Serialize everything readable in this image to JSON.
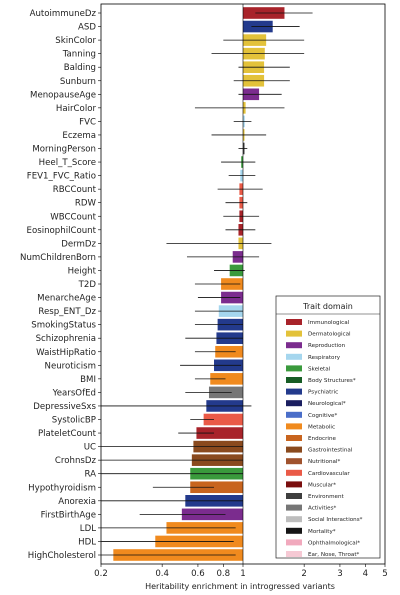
{
  "chart_data": {
    "type": "bar",
    "orientation": "horizontal",
    "xscale": "log",
    "xlim": [
      0.2,
      5
    ],
    "xticks": [
      0.2,
      0.4,
      0.6,
      0.8,
      1,
      2,
      3,
      4,
      5
    ],
    "xtick_labels": [
      "0.2",
      "0.4",
      "0.6",
      "0.8",
      "1",
      "2",
      "3",
      "4",
      "5"
    ],
    "xlabel": "Heritability enrichment in introgressed variants",
    "reference_line": 1,
    "categories": [
      "AutoimmuneDz",
      "ASD",
      "SkinColor",
      "Tanning",
      "Balding",
      "Sunburn",
      "MenopauseAge",
      "HairColor",
      "FVC",
      "Eczema",
      "MorningPerson",
      "Heel_T_Score",
      "FEV1_FVC_Ratio",
      "RBCCount",
      "RDW",
      "WBCCount",
      "EosinophilCount",
      "DermDz",
      "NumChildrenBorn",
      "Height",
      "T2D",
      "MenarcheAge",
      "Resp_ENT_Dz",
      "SmokingStatus",
      "Schizophrenia",
      "WaistHipRatio",
      "Neuroticism",
      "BMI",
      "YearsOfEd",
      "DepressiveSxs",
      "SystolicBP",
      "PlateletCount",
      "UC",
      "CrohnsDz",
      "RA",
      "Hypothyroidism",
      "Anorexia",
      "FirstBirthAge",
      "LDL",
      "HDL",
      "HighCholesterol"
    ],
    "values": [
      1.6,
      1.4,
      1.3,
      1.28,
      1.27,
      1.27,
      1.2,
      1.03,
      1.02,
      1.0,
      1.0,
      0.98,
      0.97,
      0.96,
      0.96,
      0.96,
      0.95,
      0.95,
      0.89,
      0.86,
      0.78,
      0.78,
      0.76,
      0.75,
      0.74,
      0.73,
      0.72,
      0.69,
      0.68,
      0.66,
      0.64,
      0.59,
      0.57,
      0.56,
      0.55,
      0.55,
      0.52,
      0.5,
      0.42,
      0.37,
      0.23
    ],
    "ci_low": [
      1.15,
      1.1,
      0.8,
      0.7,
      0.95,
      0.9,
      0.95,
      0.58,
      0.9,
      0.7,
      0.95,
      0.78,
      0.85,
      0.75,
      0.82,
      0.8,
      0.82,
      0.42,
      0.53,
      0.72,
      0.58,
      0.6,
      0.58,
      0.58,
      0.52,
      0.58,
      0.49,
      0.58,
      0.52,
      0.2,
      0.55,
      0.48,
      0.2,
      0.2,
      0.2,
      0.36,
      0.2,
      0.31,
      0.2,
      0.2,
      0.2
    ],
    "ci_high": [
      2.2,
      1.9,
      2.0,
      2.0,
      1.7,
      1.7,
      1.55,
      1.6,
      1.1,
      1.3,
      1.05,
      1.15,
      1.15,
      1.25,
      1.05,
      1.2,
      1.15,
      1.38,
      1.2,
      1.02,
      0.97,
      0.97,
      1.0,
      1.0,
      1.0,
      0.92,
      0.98,
      0.82,
      0.88,
      1.1,
      0.72,
      0.72,
      1.0,
      1.0,
      1.0,
      0.72,
      1.0,
      0.82,
      0.92,
      0.9,
      0.92
    ],
    "domains": [
      "Immunological",
      "Psychiatric",
      "Dermatological",
      "Dermatological",
      "Dermatological",
      "Dermatological",
      "Reproduction",
      "Dermatological",
      "Respiratory",
      "Dermatological",
      "Environment",
      "Skeletal",
      "Respiratory",
      "Cardiovascular",
      "Cardiovascular",
      "Immunological",
      "Immunological",
      "Dermatological",
      "Reproduction",
      "Skeletal",
      "Metabolic",
      "Reproduction",
      "Respiratory",
      "Psychiatric",
      "Psychiatric",
      "Metabolic",
      "Psychiatric",
      "Metabolic",
      "Activities*",
      "Psychiatric",
      "Cardiovascular",
      "Immunological",
      "Gastrointestinal",
      "Gastrointestinal",
      "Skeletal",
      "Endocrine",
      "Psychiatric",
      "Reproduction",
      "Metabolic",
      "Metabolic",
      "Metabolic"
    ],
    "legend": {
      "title": "Trait domain",
      "placement": "bottom-right",
      "entries": [
        {
          "label": "Immunological",
          "color": "#a8232a"
        },
        {
          "label": "Dermatological",
          "color": "#e3c23a"
        },
        {
          "label": "Reproduction",
          "color": "#7b2c8e"
        },
        {
          "label": "Respiratory",
          "color": "#a5d6ee"
        },
        {
          "label": "Skeletal",
          "color": "#3a9a3c"
        },
        {
          "label": "Body Structures*",
          "color": "#175d25"
        },
        {
          "label": "Psychiatric",
          "color": "#233a8c"
        },
        {
          "label": "Neurological*",
          "color": "#1a1e60"
        },
        {
          "label": "Cognitive*",
          "color": "#4a6ec9"
        },
        {
          "label": "Metabolic",
          "color": "#f08a1e"
        },
        {
          "label": "Endocrine",
          "color": "#c8641e"
        },
        {
          "label": "Gastrointestinal",
          "color": "#8a4a1e"
        },
        {
          "label": "Nutritional*",
          "color": "#a0522d"
        },
        {
          "label": "Cardiovascular",
          "color": "#ea5a47"
        },
        {
          "label": "Muscular*",
          "color": "#7a0e0e"
        },
        {
          "label": "Environment",
          "color": "#3e3e3e"
        },
        {
          "label": "Activities*",
          "color": "#767676"
        },
        {
          "label": "Social Interactions*",
          "color": "#bdbdbd"
        },
        {
          "label": "Mortality*",
          "color": "#151515"
        },
        {
          "label": "Ophthalmological*",
          "color": "#f1a9bd"
        },
        {
          "label": "Ear, Nose, Throat*",
          "color": "#f6c9d4"
        }
      ]
    },
    "grid": false
  }
}
